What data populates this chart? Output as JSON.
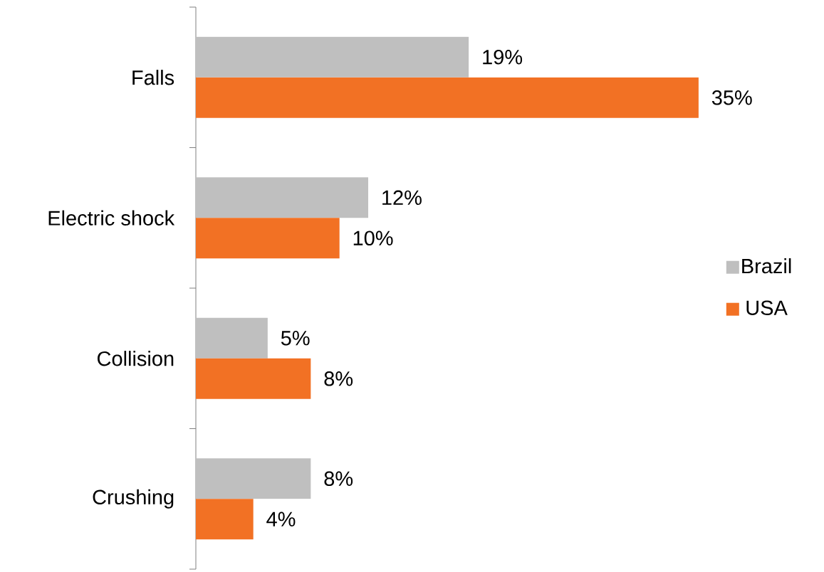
{
  "chart_data": {
    "type": "bar",
    "orientation": "horizontal",
    "categories": [
      "Falls",
      "Electric shock",
      "Collision",
      "Crushing"
    ],
    "series": [
      {
        "name": "Brazil",
        "color": "#bfbfbf",
        "values": [
          19,
          12,
          5,
          8
        ],
        "value_labels": [
          "19%",
          "12%",
          "5%",
          "8%"
        ]
      },
      {
        "name": "USA",
        "color": "#f27124",
        "values": [
          35,
          10,
          8,
          4
        ],
        "value_labels": [
          "35%",
          "10%",
          "8%",
          "4%"
        ]
      }
    ],
    "legend": "right"
  }
}
